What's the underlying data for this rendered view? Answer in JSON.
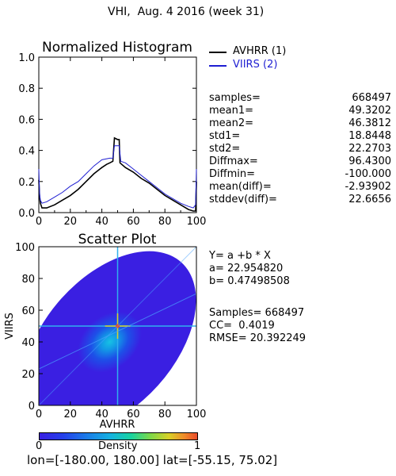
{
  "page_title": "VHI,  Aug. 4 2016 (week 31)",
  "footer": "lon=[-180.00, 180.00] lat=[-55.15, 75.02]",
  "colorbar": {
    "label": "Density",
    "min": "0",
    "max": "1"
  },
  "histogram": {
    "legend": [
      {
        "label": "AVHRR (1)",
        "color": "#000000"
      },
      {
        "label": "VIIRS (2)",
        "color": "#1e1ed2"
      }
    ],
    "stats": [
      {
        "key": "samples=",
        "value": "668497"
      },
      {
        "key": "mean1=",
        "value": "49.3202"
      },
      {
        "key": "mean2=",
        "value": "46.3812"
      },
      {
        "key": "std1=",
        "value": "18.8448"
      },
      {
        "key": "std2=",
        "value": "22.2703"
      },
      {
        "key": "Diffmax=",
        "value": "96.4300"
      },
      {
        "key": "Diffmin=",
        "value": "-100.000"
      },
      {
        "key": "mean(diff)=",
        "value": "-2.93902"
      },
      {
        "key": "stddev(diff)=",
        "value": "22.6656"
      }
    ]
  },
  "scatter": {
    "fit": [
      {
        "text": "Y= a +b * X"
      },
      {
        "text": "a= 22.954820"
      },
      {
        "text": "b= 0.47498508"
      }
    ],
    "metrics": [
      {
        "text": "Samples= 668497"
      },
      {
        "text": "CC=  0.4019"
      },
      {
        "text": "RMSE= 20.392249"
      }
    ]
  },
  "chart_data": [
    {
      "type": "line",
      "title": "Normalized Histogram",
      "xlim": [
        0,
        100
      ],
      "ylim": [
        0,
        1.0
      ],
      "xticks": [
        "0",
        "20",
        "40",
        "60",
        "80",
        "100"
      ],
      "yticks": [
        "0.0",
        "0.2",
        "0.4",
        "0.6",
        "0.8",
        "1.0"
      ],
      "series": [
        {
          "name": "AVHRR (1)",
          "color": "#000000",
          "points": [
            [
              0,
              0.21
            ],
            [
              0.5,
              0.1
            ],
            [
              1,
              0.06
            ],
            [
              2,
              0.03
            ],
            [
              5,
              0.03
            ],
            [
              10,
              0.05
            ],
            [
              15,
              0.08
            ],
            [
              20,
              0.11
            ],
            [
              25,
              0.15
            ],
            [
              30,
              0.2
            ],
            [
              35,
              0.25
            ],
            [
              40,
              0.29
            ],
            [
              43,
              0.31
            ],
            [
              45,
              0.32
            ],
            [
              47,
              0.33
            ],
            [
              48,
              0.48
            ],
            [
              50,
              0.47
            ],
            [
              51,
              0.47
            ],
            [
              51.5,
              0.32
            ],
            [
              55,
              0.29
            ],
            [
              60,
              0.26
            ],
            [
              65,
              0.22
            ],
            [
              70,
              0.19
            ],
            [
              75,
              0.15
            ],
            [
              80,
              0.11
            ],
            [
              85,
              0.08
            ],
            [
              90,
              0.05
            ],
            [
              95,
              0.02
            ],
            [
              98,
              0.01
            ],
            [
              99.5,
              0.01
            ],
            [
              100,
              0.2
            ]
          ]
        },
        {
          "name": "VIIRS (2)",
          "color": "#1e1ed2",
          "points": [
            [
              0,
              0.28
            ],
            [
              0.5,
              0.12
            ],
            [
              1,
              0.08
            ],
            [
              2,
              0.06
            ],
            [
              5,
              0.07
            ],
            [
              10,
              0.1
            ],
            [
              15,
              0.13
            ],
            [
              20,
              0.17
            ],
            [
              25,
              0.2
            ],
            [
              30,
              0.25
            ],
            [
              35,
              0.3
            ],
            [
              40,
              0.34
            ],
            [
              45,
              0.35
            ],
            [
              47,
              0.35
            ],
            [
              48,
              0.43
            ],
            [
              51,
              0.43
            ],
            [
              52,
              0.33
            ],
            [
              55,
              0.32
            ],
            [
              60,
              0.28
            ],
            [
              65,
              0.24
            ],
            [
              70,
              0.2
            ],
            [
              75,
              0.16
            ],
            [
              80,
              0.12
            ],
            [
              85,
              0.09
            ],
            [
              90,
              0.06
            ],
            [
              95,
              0.04
            ],
            [
              98,
              0.03
            ],
            [
              99.5,
              0.05
            ],
            [
              100,
              0.28
            ]
          ]
        }
      ]
    },
    {
      "type": "heatmap",
      "title": "Scatter Plot",
      "xlabel": "AVHRR",
      "ylabel": "VIIRS",
      "xlim": [
        0,
        100
      ],
      "ylim": [
        0,
        100
      ],
      "xticks": [
        "0",
        "20",
        "40",
        "60",
        "80",
        "100"
      ],
      "yticks": [
        "0",
        "20",
        "40",
        "60",
        "80",
        "100"
      ],
      "density_center": [
        45,
        40
      ],
      "fit_line": {
        "a": 22.95482,
        "b": 0.47498508
      },
      "grid": false
    }
  ]
}
